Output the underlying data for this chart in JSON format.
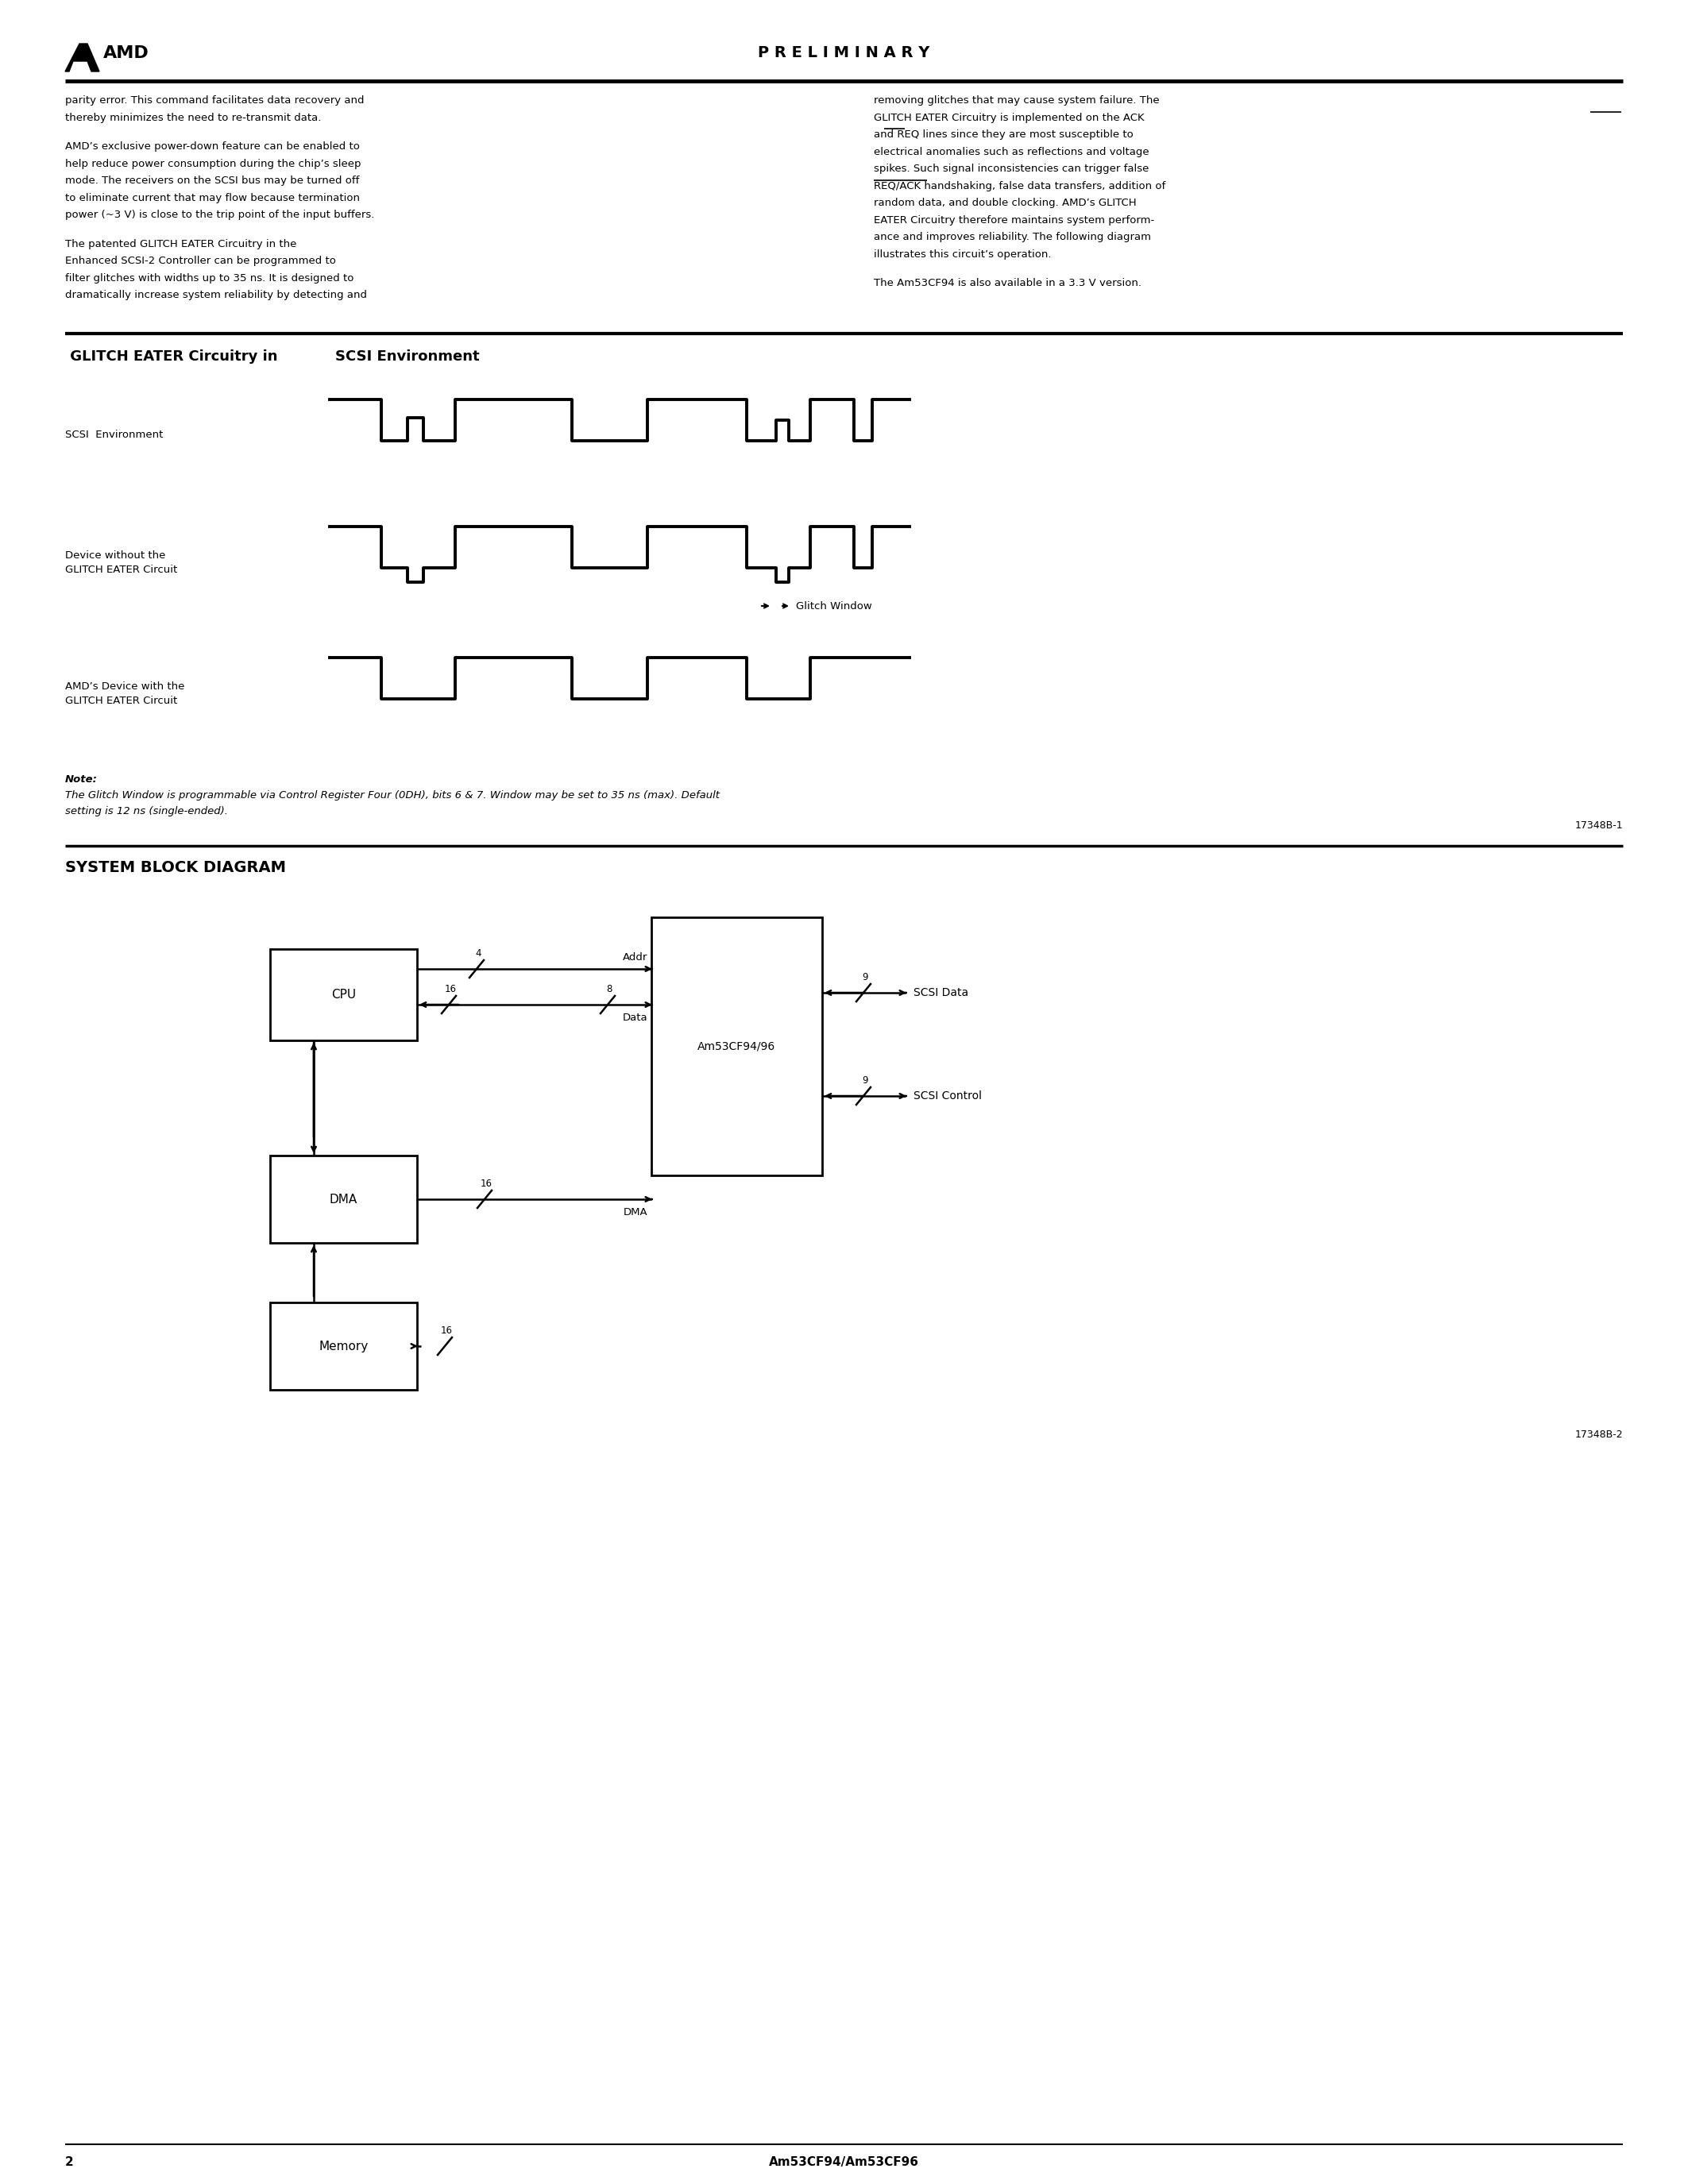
{
  "page_bg": "#ffffff",
  "header_text": "P R E L I M I N A R Y",
  "header_amd": "AMD",
  "left_col_text": [
    "parity error. This command facilitates data recovery and",
    "thereby minimizes the need to re-transmit data.",
    "",
    "AMD’s exclusive power-down feature can be enabled to",
    "help reduce power consumption during the chip’s sleep",
    "mode. The receivers on the SCSI bus may be turned off",
    "to eliminate current that may flow because termination",
    "power (~3 V) is close to the trip point of the input buffers.",
    "",
    "The patented GLITCH EATER Circuitry in the",
    "Enhanced SCSI-2 Controller can be programmed to",
    "filter glitches with widths up to 35 ns. It is designed to",
    "dramatically increase system reliability by detecting and"
  ],
  "right_col_text": [
    "removing glitches that may cause system failure. The",
    "GLITCH EATER Circuitry is implemented on the ACK",
    "and REQ lines since they are most susceptible to",
    "electrical anomalies such as reflections and voltage",
    "spikes. Such signal inconsistencies can trigger false",
    "REQ/ACK handshaking, false data transfers, addition of",
    "random data, and double clocking. AMD’s GLITCH",
    "EATER Circuitry therefore maintains system perform-",
    "ance and improves reliability. The following diagram",
    "illustrates this circuit’s operation.",
    "",
    "The Am53CF94 is also available in a 3.3 V version."
  ],
  "section1_title_part1": " GLITCH EATER Circuitry in ",
  "section1_title_part2": "SCSI Environment",
  "waveform_label1": "SCSI  Environment",
  "waveform_label2_line1": "Device without the",
  "waveform_label2_line2": "GLITCH EATER Circuit",
  "waveform_label3_line1": "AMD’s Device with the",
  "waveform_label3_line2": "GLITCH EATER Circuit",
  "glitch_window_label": "Glitch Window",
  "note_bold": "Note:",
  "note_line1": "The Glitch Window is programmable via Control Register Four (0DH), bits 6 & 7. Window may be set to 35 ns (max). Default",
  "note_line2": "setting is 12 ns (single-ended).",
  "figure1_num": "17348B-1",
  "section2_title": "SYSTEM BLOCK DIAGRAM",
  "cpu_label": "CPU",
  "dma_label": "DMA",
  "mem_label": "Memory",
  "esc_label": "Am53CF94/96",
  "addr_label": "Addr",
  "data_label": "Data",
  "dma_bus_label": "DMA",
  "scsi_data_label": "SCSI Data",
  "scsi_ctrl_label": "SCSI Control",
  "figure2_num": "17348B-2",
  "footer_page": "2",
  "footer_part": "Am53CF94/Am53CF96"
}
